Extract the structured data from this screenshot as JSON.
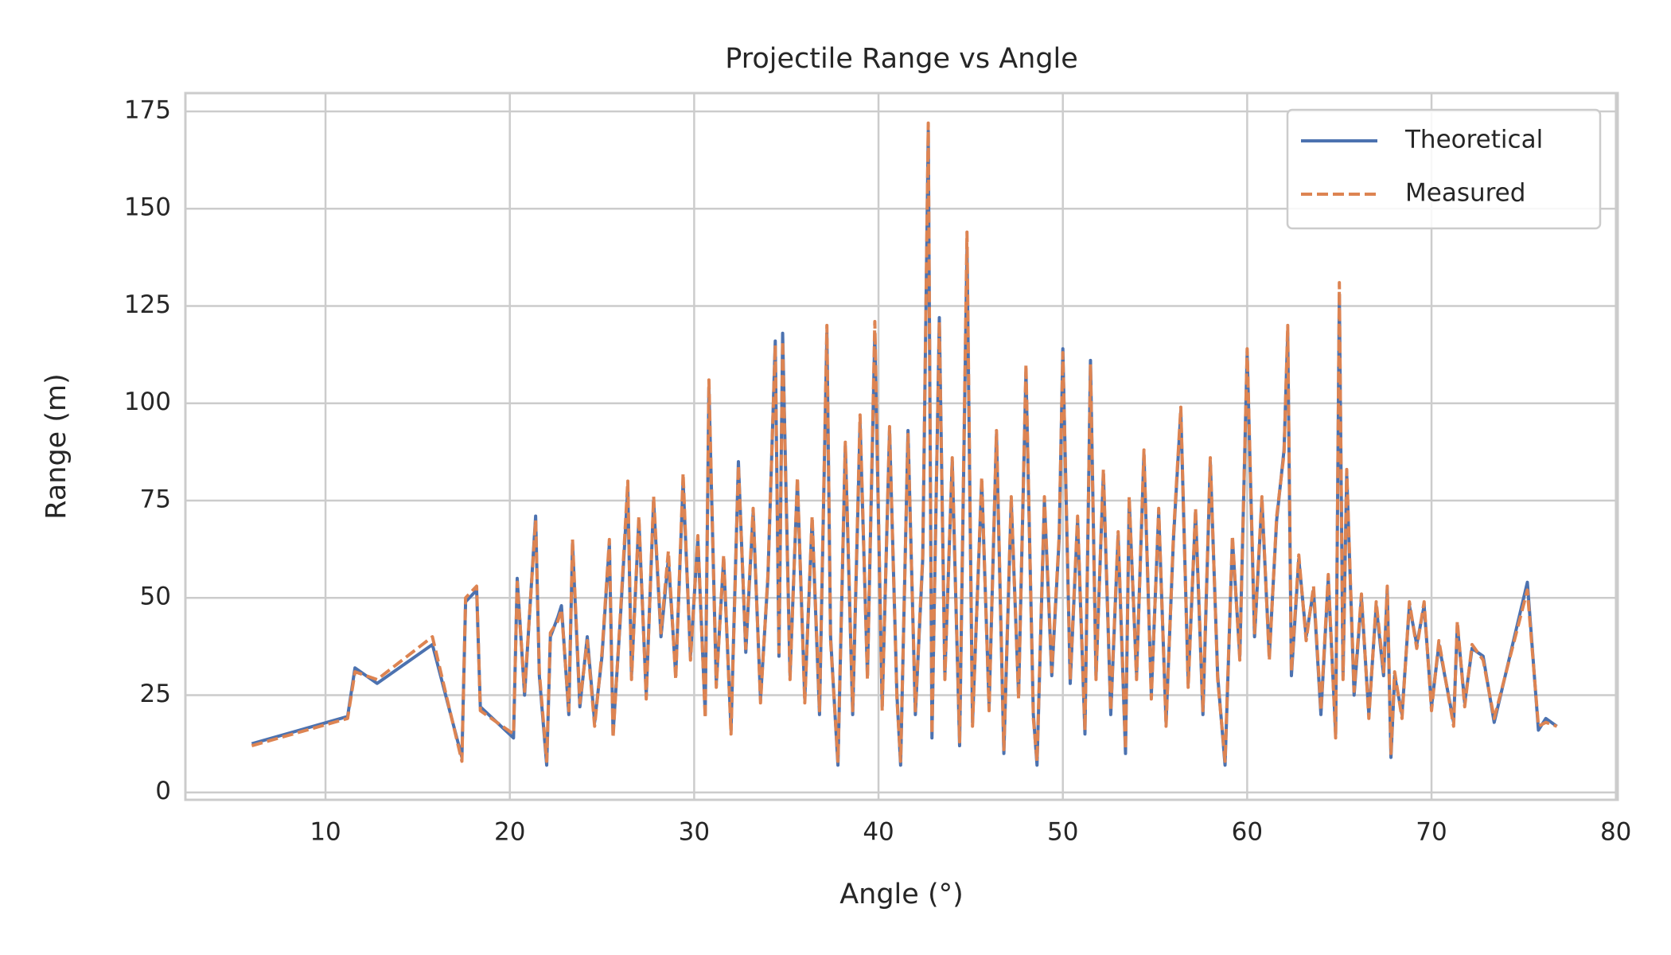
{
  "chart_data": {
    "type": "line",
    "title": "Projectile Range vs Angle",
    "xlabel": "Angle (°)",
    "ylabel": "Range (m)",
    "x": [
      6,
      11.2,
      11.6,
      12.8,
      15.8,
      17.4,
      17.6,
      18.2,
      18.4,
      20.2,
      20.4,
      20.8,
      21.4,
      21.6,
      22.0,
      22.2,
      22.6,
      22.8,
      23.2,
      23.4,
      23.8,
      24.2,
      24.6,
      25.0,
      25.4,
      25.6,
      26.0,
      26.4,
      26.6,
      27.0,
      27.4,
      27.8,
      28.2,
      28.6,
      29.0,
      29.4,
      29.8,
      30.2,
      30.6,
      30.8,
      31.2,
      31.6,
      32.0,
      32.4,
      32.8,
      33.2,
      33.6,
      34.0,
      34.4,
      34.6,
      34.8,
      35.2,
      35.6,
      36.0,
      36.4,
      36.8,
      37.2,
      37.4,
      37.8,
      38.2,
      38.6,
      39.0,
      39.4,
      39.8,
      40.2,
      40.6,
      41.0,
      41.2,
      41.6,
      42.0,
      42.4,
      42.7,
      42.9,
      43.3,
      43.6,
      44.0,
      44.4,
      44.8,
      45.1,
      45.6,
      46.0,
      46.4,
      46.8,
      47.2,
      47.6,
      48.0,
      48.4,
      48.6,
      49.0,
      49.4,
      49.8,
      50.0,
      50.4,
      50.8,
      51.2,
      51.5,
      51.8,
      52.2,
      52.6,
      53.0,
      53.4,
      53.6,
      54.0,
      54.4,
      54.8,
      55.2,
      55.6,
      56.0,
      56.4,
      56.8,
      57.2,
      57.6,
      58.0,
      58.4,
      58.8,
      59.2,
      59.6,
      60.0,
      60.4,
      60.8,
      61.2,
      61.6,
      62.0,
      62.2,
      62.4,
      62.8,
      63.2,
      63.6,
      64.0,
      64.4,
      64.8,
      65.0,
      65.2,
      65.4,
      65.8,
      66.2,
      66.6,
      67.0,
      67.4,
      67.6,
      67.8,
      68.0,
      68.4,
      68.8,
      69.2,
      69.6,
      70.0,
      70.4,
      71.2,
      71.4,
      71.8,
      72.2,
      72.8,
      73.4,
      75.2,
      75.8,
      76.2,
      76.8
    ],
    "series": [
      {
        "name": "Theoretical",
        "color": "#4c72b0",
        "dash": false,
        "values": [
          12.5,
          19.5,
          32,
          28,
          38,
          9,
          49,
          52,
          22,
          14,
          55,
          25,
          71,
          30,
          7,
          40,
          45,
          48,
          20,
          64,
          22,
          40,
          18,
          35,
          64,
          15,
          45,
          78,
          30,
          70,
          25,
          75,
          40,
          60,
          30,
          80,
          35,
          65,
          20,
          104,
          28,
          60,
          16,
          85,
          36,
          72,
          24,
          55,
          116,
          35,
          118,
          30,
          80,
          24,
          70,
          20,
          118,
          40,
          7,
          89,
          20,
          95,
          30,
          118,
          22,
          93,
          25,
          7,
          93,
          20,
          60,
          170,
          14,
          122,
          30,
          85,
          12,
          140,
          18,
          80,
          22,
          92,
          10,
          75,
          25,
          108,
          20,
          7,
          75,
          30,
          65,
          114,
          28,
          70,
          15,
          111,
          30,
          82,
          20,
          66,
          10,
          75,
          30,
          87,
          25,
          72,
          18,
          65,
          98,
          28,
          72,
          20,
          85,
          30,
          7,
          65,
          35,
          113,
          40,
          75,
          35,
          70,
          88,
          118,
          30,
          60,
          40,
          52,
          20,
          55,
          15,
          128,
          30,
          82,
          25,
          50,
          20,
          48,
          30,
          52,
          9,
          30,
          20,
          48,
          38,
          48,
          22,
          38,
          18,
          43,
          23,
          37,
          35,
          18,
          54,
          16,
          19,
          17
        ]
      },
      {
        "name": "Measured",
        "color": "#dd8452",
        "dash": true,
        "values": [
          12,
          19,
          31,
          29,
          40,
          8,
          50,
          53,
          21,
          15,
          54,
          26,
          70,
          31,
          8,
          41,
          44,
          47,
          21,
          65,
          23,
          39,
          17,
          36,
          65,
          14,
          46,
          80,
          29,
          71,
          24,
          76,
          41,
          62,
          29,
          82,
          34,
          66,
          19,
          106,
          27,
          61,
          15,
          84,
          37,
          73,
          23,
          56,
          115,
          36,
          116,
          29,
          81,
          23,
          71,
          21,
          120,
          39,
          8,
          90,
          21,
          97,
          29,
          121,
          21,
          94,
          24,
          8,
          92,
          21,
          61,
          172,
          15,
          121,
          29,
          86,
          13,
          144,
          17,
          81,
          21,
          93,
          11,
          76,
          24,
          110,
          19,
          8,
          76,
          31,
          66,
          113,
          29,
          71,
          16,
          110,
          29,
          83,
          21,
          67,
          11,
          76,
          29,
          88,
          24,
          73,
          17,
          66,
          99,
          27,
          73,
          21,
          86,
          29,
          8,
          66,
          34,
          114,
          41,
          76,
          34,
          71,
          87,
          120,
          31,
          61,
          39,
          53,
          21,
          56,
          14,
          131,
          29,
          83,
          26,
          51,
          19,
          49,
          31,
          53,
          10,
          31,
          19,
          49,
          37,
          49,
          21,
          39,
          17,
          44,
          22,
          38,
          34,
          19,
          52,
          17,
          18,
          17
        ]
      }
    ],
    "xlim": [
      2.4,
      80.1
    ],
    "ylim": [
      -1.9,
      179.7
    ],
    "xticks": [
      10,
      20,
      30,
      40,
      50,
      60,
      70,
      80
    ],
    "yticks": [
      0,
      25,
      50,
      75,
      100,
      125,
      150,
      175
    ],
    "grid": true,
    "legend": "upper right"
  }
}
